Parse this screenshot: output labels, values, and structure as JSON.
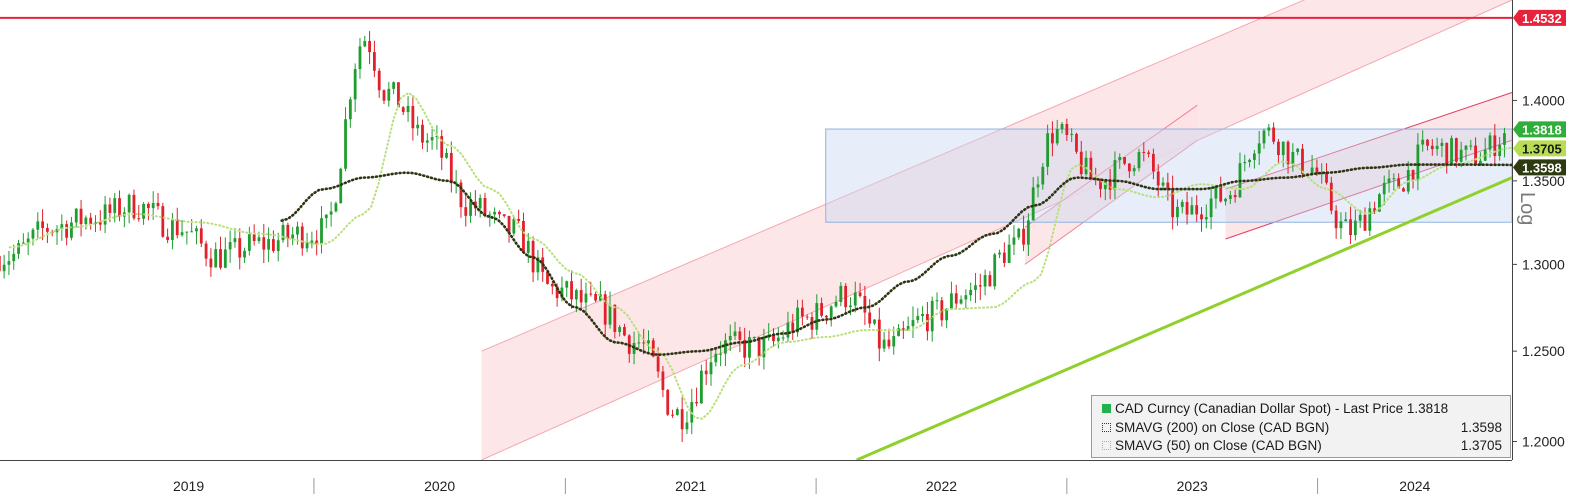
{
  "chart_data": {
    "type": "line",
    "title": "",
    "xlabel": "",
    "ylabel": "",
    "scale_label": "Log",
    "x_ticks": [
      "2019",
      "2020",
      "2021",
      "2022",
      "2023",
      "2024"
    ],
    "y_ticks": [
      "1.2000",
      "1.2500",
      "1.3000",
      "1.3500",
      "1.4000"
    ],
    "ylim": [
      1.19,
      1.465
    ],
    "xlim": [
      "2018-10-01",
      "2024-10-10"
    ],
    "grid": false,
    "legend_position": "bottom-right",
    "legend": [
      {
        "label": "CAD Curncy (Canadian Dollar Spot) - Last Price",
        "value": "1.3818",
        "color": "#22b14c"
      },
      {
        "label": "SMAVG (200)  on Close (CAD BGN)",
        "value": "1.3598",
        "color": "#3b3b1f"
      },
      {
        "label": "SMAVG (50)  on Close (CAD BGN)",
        "value": "1.3705",
        "color": "#b7e07a"
      }
    ],
    "price_tags": [
      {
        "value": "1.4532",
        "bg": "#e8223a",
        "fg": "#ffffff"
      },
      {
        "value": "1.3818",
        "bg": "#2fae3a",
        "fg": "#ffffff"
      },
      {
        "value": "1.3705",
        "bg": "#b9dc55",
        "fg": "#1a1a1a"
      },
      {
        "value": "1.3598",
        "bg": "#2e3a12",
        "fg": "#ffffff"
      }
    ],
    "horizontal_line": {
      "y": 1.4532,
      "color": "#e8223a"
    },
    "range_box": {
      "x0": "2022-01-15",
      "x1": "2024-10-10",
      "y0": 1.325,
      "y1": 1.382
    },
    "series": [
      {
        "name": "CAD Curncy (Canadian Dollar Spot) - Last Price",
        "kind": "candlestick",
        "x": [
          "2018-10",
          "2018-12",
          "2019-02",
          "2019-04",
          "2019-06",
          "2019-08",
          "2019-10",
          "2019-12",
          "2020-01",
          "2020-03",
          "2020-04",
          "2020-06",
          "2020-08",
          "2020-10",
          "2020-12",
          "2021-02",
          "2021-04",
          "2021-06",
          "2021-08",
          "2021-10",
          "2021-12",
          "2022-02",
          "2022-04",
          "2022-06",
          "2022-08",
          "2022-10",
          "2022-12",
          "2023-02",
          "2023-04",
          "2023-06",
          "2023-08",
          "2023-10",
          "2023-12",
          "2024-02",
          "2024-04",
          "2024-06",
          "2024-08",
          "2024-10"
        ],
        "y": [
          1.305,
          1.322,
          1.328,
          1.335,
          1.322,
          1.305,
          1.312,
          1.318,
          1.32,
          1.44,
          1.405,
          1.375,
          1.335,
          1.32,
          1.285,
          1.275,
          1.255,
          1.215,
          1.253,
          1.252,
          1.268,
          1.282,
          1.252,
          1.27,
          1.285,
          1.31,
          1.38,
          1.35,
          1.365,
          1.33,
          1.34,
          1.38,
          1.36,
          1.32,
          1.345,
          1.37,
          1.365,
          1.3818
        ]
      },
      {
        "name": "SMAVG (50)  on Close (CAD BGN)",
        "x": [
          "2018-10",
          "2019-01",
          "2019-04",
          "2019-07",
          "2019-10",
          "2020-01",
          "2020-03",
          "2020-05",
          "2020-07",
          "2020-09",
          "2020-11",
          "2021-01",
          "2021-03",
          "2021-05",
          "2021-07",
          "2021-09",
          "2021-11",
          "2022-01",
          "2022-03",
          "2022-05",
          "2022-07",
          "2022-09",
          "2022-11",
          "2023-01",
          "2023-03",
          "2023-05",
          "2023-07",
          "2023-09",
          "2023-11",
          "2024-01",
          "2024-03",
          "2024-05",
          "2024-07",
          "2024-10"
        ],
        "y": [
          1.31,
          1.322,
          1.33,
          1.325,
          1.318,
          1.312,
          1.33,
          1.405,
          1.372,
          1.345,
          1.315,
          1.295,
          1.275,
          1.25,
          1.212,
          1.242,
          1.255,
          1.258,
          1.262,
          1.262,
          1.274,
          1.275,
          1.29,
          1.36,
          1.345,
          1.34,
          1.348,
          1.345,
          1.362,
          1.345,
          1.33,
          1.35,
          1.36,
          1.3705
        ]
      },
      {
        "name": "SMAVG (200)  on Close (CAD BGN)",
        "x": [
          "2019-11",
          "2020-01",
          "2020-03",
          "2020-05",
          "2020-07",
          "2020-09",
          "2020-11",
          "2021-01",
          "2021-03",
          "2021-05",
          "2021-07",
          "2021-09",
          "2021-11",
          "2022-01",
          "2022-03",
          "2022-05",
          "2022-07",
          "2022-09",
          "2022-11",
          "2023-01",
          "2023-03",
          "2023-05",
          "2023-07",
          "2023-09",
          "2023-11",
          "2024-01",
          "2024-03",
          "2024-05",
          "2024-07",
          "2024-10"
        ],
        "y": [
          1.326,
          1.345,
          1.352,
          1.355,
          1.35,
          1.328,
          1.304,
          1.275,
          1.255,
          1.248,
          1.25,
          1.255,
          1.26,
          1.268,
          1.275,
          1.29,
          1.305,
          1.318,
          1.335,
          1.352,
          1.35,
          1.345,
          1.345,
          1.35,
          1.352,
          1.355,
          1.358,
          1.36,
          1.36,
          1.3598
        ]
      }
    ],
    "channels": [
      {
        "kind": "wide-up",
        "x0": "2020-09-01",
        "y0": 1.19,
        "x1": "2024-10-10",
        "y1": 1.465,
        "width": 0.06,
        "fill": "#fde2e4",
        "line": "#f4a7b0"
      },
      {
        "kind": "short-up",
        "x0": "2022-11-01",
        "y0": 1.3,
        "x1": "2023-07-10",
        "y1": 1.375,
        "width": 0.022,
        "fill": "#fde2e4",
        "line": "#f08090"
      },
      {
        "kind": "short-up",
        "x0": "2023-08-20",
        "y0": 1.315,
        "x1": "2024-10-10",
        "y1": 1.375,
        "width": 0.03,
        "fill": "#fde2e4",
        "line": "#e04060"
      }
    ],
    "trendline": {
      "x0": "2022-03-01",
      "y0": 1.19,
      "x1": "2024-10-10",
      "y1": 1.352,
      "color": "#8fd12a"
    }
  }
}
